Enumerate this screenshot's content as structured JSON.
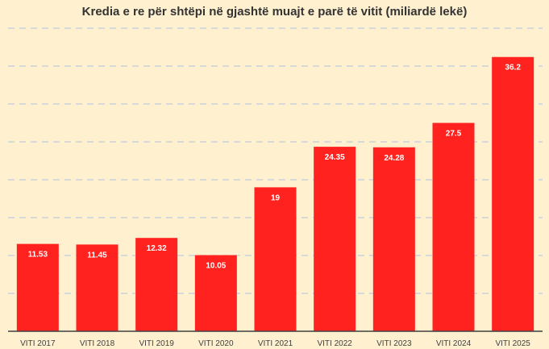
{
  "chart_data": {
    "type": "bar",
    "title": "Kredia e re për shtëpi në gjashtë muajt e parë të vitit (miliardë lekë)",
    "xlabel": "",
    "ylabel": "",
    "categories": [
      "VITI 2017",
      "VITI 2018",
      "VITI 2019",
      "VITI 2020",
      "VITI 2021",
      "VITI 2022",
      "VITI 2023",
      "VITI 2024",
      "VITI 2025"
    ],
    "values": [
      11.53,
      11.45,
      12.32,
      10.05,
      19,
      24.35,
      24.28,
      27.5,
      36.2
    ],
    "data_labels": [
      "11.53",
      "11.45",
      "12.32",
      "10.05",
      "19",
      "24.35",
      "24.28",
      "27.5",
      "36.2"
    ],
    "ylim": [
      0,
      40
    ],
    "gridlines": [
      5,
      10,
      15,
      20,
      25,
      30,
      35,
      40
    ],
    "grid": true,
    "legend": "none",
    "colors": {
      "bar": "#ff221e",
      "background": "#fff1cf",
      "grid": "#c7d3dc",
      "label": "#ffffff"
    }
  }
}
